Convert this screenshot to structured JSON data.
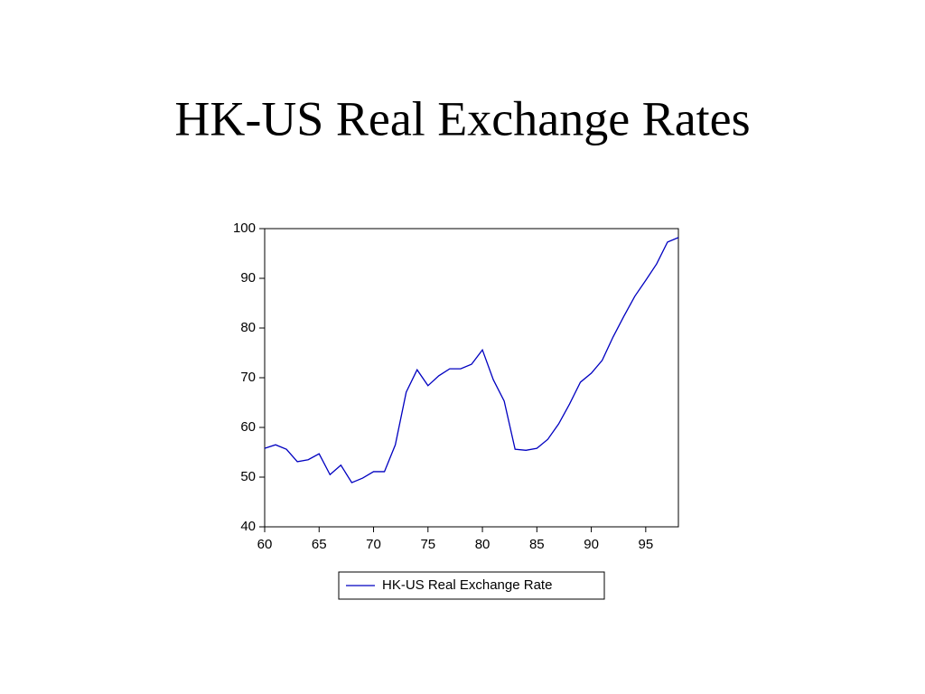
{
  "chart_data": {
    "type": "line",
    "title": "HK-US Real Exchange Rates",
    "x": [
      60,
      61,
      62,
      63,
      64,
      65,
      66,
      67,
      68,
      69,
      70,
      71,
      72,
      73,
      74,
      75,
      76,
      77,
      78,
      79,
      80,
      81,
      82,
      83,
      84,
      85,
      86,
      87,
      88,
      89,
      90,
      91,
      92,
      93,
      94,
      95,
      96,
      97,
      98
    ],
    "series": [
      {
        "name": "HK-US Real Exchange Rate",
        "color": "#0000c0",
        "values": [
          55.8,
          56.5,
          55.6,
          53.1,
          53.5,
          54.7,
          50.5,
          52.4,
          48.9,
          49.8,
          51.1,
          51.1,
          56.5,
          67.1,
          71.6,
          68.4,
          70.4,
          71.8,
          71.8,
          72.7,
          75.6,
          69.6,
          65.3,
          55.6,
          55.4,
          55.8,
          57.6,
          60.7,
          64.7,
          69.1,
          70.9,
          73.5,
          78.2,
          82.4,
          86.4,
          89.6,
          92.9,
          97.3,
          98.2
        ]
      }
    ],
    "xlim": [
      60,
      98
    ],
    "xticks": [
      60,
      65,
      70,
      75,
      80,
      85,
      90,
      95
    ],
    "ylim": [
      40,
      100
    ],
    "yticks": [
      40,
      50,
      60,
      70,
      80,
      90,
      100
    ]
  }
}
